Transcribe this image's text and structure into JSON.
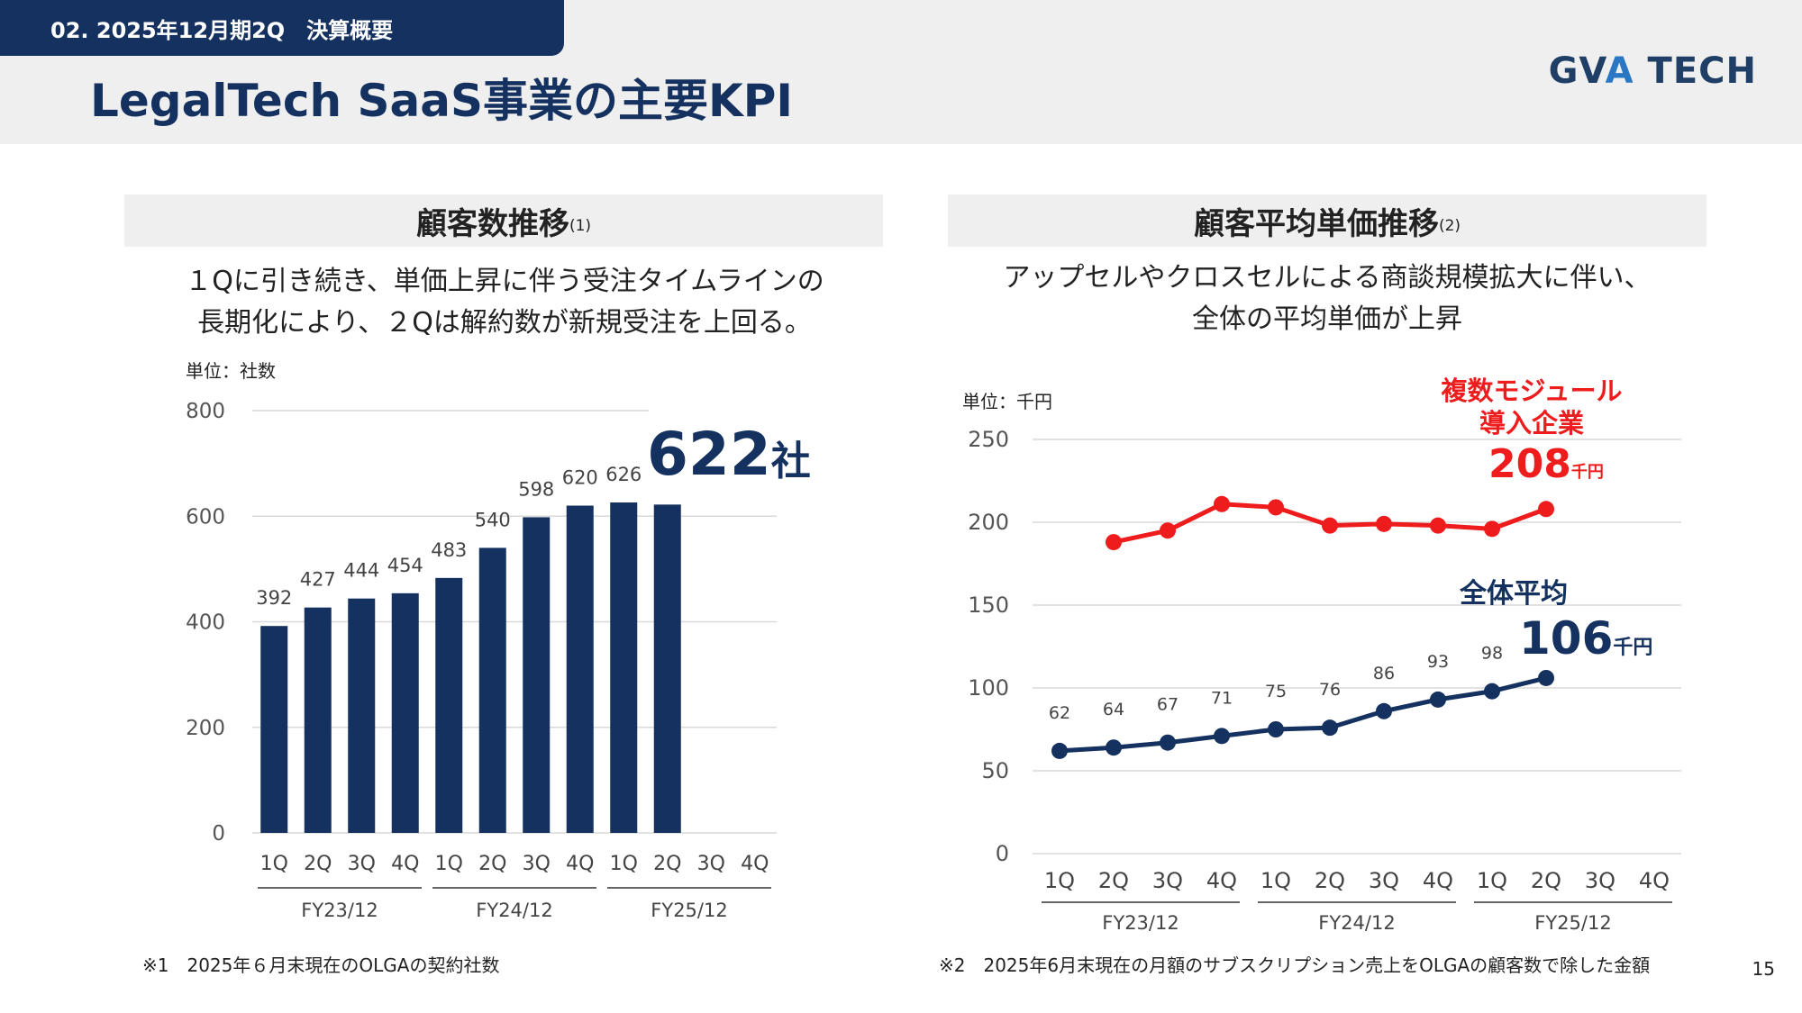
{
  "header": {
    "section_label": "02. 2025年12月期2Q　決算概要",
    "title": "LegalTech SaaS事業の主要KPI",
    "logo_main": "GVA",
    "logo_accent": "A",
    "logo_text": "GV",
    "logo_tail": " TECH"
  },
  "left_panel": {
    "title": "顧客数推移",
    "title_note": "(1)",
    "description_line1": "１Qに引き続き、単価上昇に伴う受注タイムラインの",
    "description_line2": "長期化により、２Qは解約数が新規受注を上回る。",
    "unit": "単位：社数",
    "highlight_value": "622",
    "highlight_unit": "社",
    "footnote": "※1　2025年６月末現在のOLGAの契約社数"
  },
  "right_panel": {
    "title": "顧客平均単価推移",
    "title_note": "(2)",
    "description_line1": "アップセルやクロスセルによる商談規模拡大に伴い、",
    "description_line2": "全体の平均単価が上昇",
    "unit": "単位：千円",
    "multi_label_line1": "複数モジュール",
    "multi_label_line2": "導入企業",
    "multi_value": "208",
    "multi_value_unit": "千円",
    "avg_label": "全体平均",
    "avg_value": "106",
    "avg_value_unit": "千円",
    "footnote": "※2　2025年6月末現在の月額のサブスクリプション売上をOLGAの顧客数で除した金額"
  },
  "page_number": "15",
  "colors": {
    "navy": "#14315f",
    "red": "#ee1c1c",
    "grid": "#d9d9d9"
  },
  "chart_data": [
    {
      "type": "bar",
      "categories": [
        "1Q",
        "2Q",
        "3Q",
        "4Q",
        "1Q",
        "2Q",
        "3Q",
        "4Q",
        "1Q",
        "2Q",
        "3Q",
        "4Q"
      ],
      "groups": [
        "FY23/12",
        "FY24/12",
        "FY25/12"
      ],
      "values": [
        392,
        427,
        444,
        454,
        483,
        540,
        598,
        620,
        626,
        622,
        null,
        null
      ],
      "data_labels": [
        "392",
        "427",
        "444",
        "454",
        "483",
        "540",
        "598",
        "620",
        "626",
        "",
        "",
        ""
      ],
      "ylim": [
        0,
        800
      ],
      "yticks": [
        0,
        200,
        400,
        600,
        800
      ],
      "grid": true
    },
    {
      "type": "line",
      "categories": [
        "1Q",
        "2Q",
        "3Q",
        "4Q",
        "1Q",
        "2Q",
        "3Q",
        "4Q",
        "1Q",
        "2Q",
        "3Q",
        "4Q"
      ],
      "groups": [
        "FY23/12",
        "FY24/12",
        "FY25/12"
      ],
      "series": [
        {
          "name": "全体平均",
          "color": "#14315f",
          "values": [
            62,
            64,
            67,
            71,
            75,
            76,
            86,
            93,
            98,
            106,
            null,
            null
          ],
          "data_labels": [
            "62",
            "64",
            "67",
            "71",
            "75",
            "76",
            "86",
            "93",
            "98",
            "",
            "",
            ""
          ]
        },
        {
          "name": "複数モジュール導入企業",
          "color": "#ee1c1c",
          "values": [
            null,
            188,
            195,
            211,
            209,
            198,
            199,
            198,
            196,
            208,
            null,
            null
          ],
          "data_labels": [
            "",
            "",
            "",
            "",
            "",
            "",
            "",
            "",
            "",
            "",
            "",
            ""
          ]
        }
      ],
      "ylim": [
        0,
        250
      ],
      "yticks": [
        0,
        50,
        100,
        150,
        200,
        250
      ],
      "grid": true
    }
  ]
}
